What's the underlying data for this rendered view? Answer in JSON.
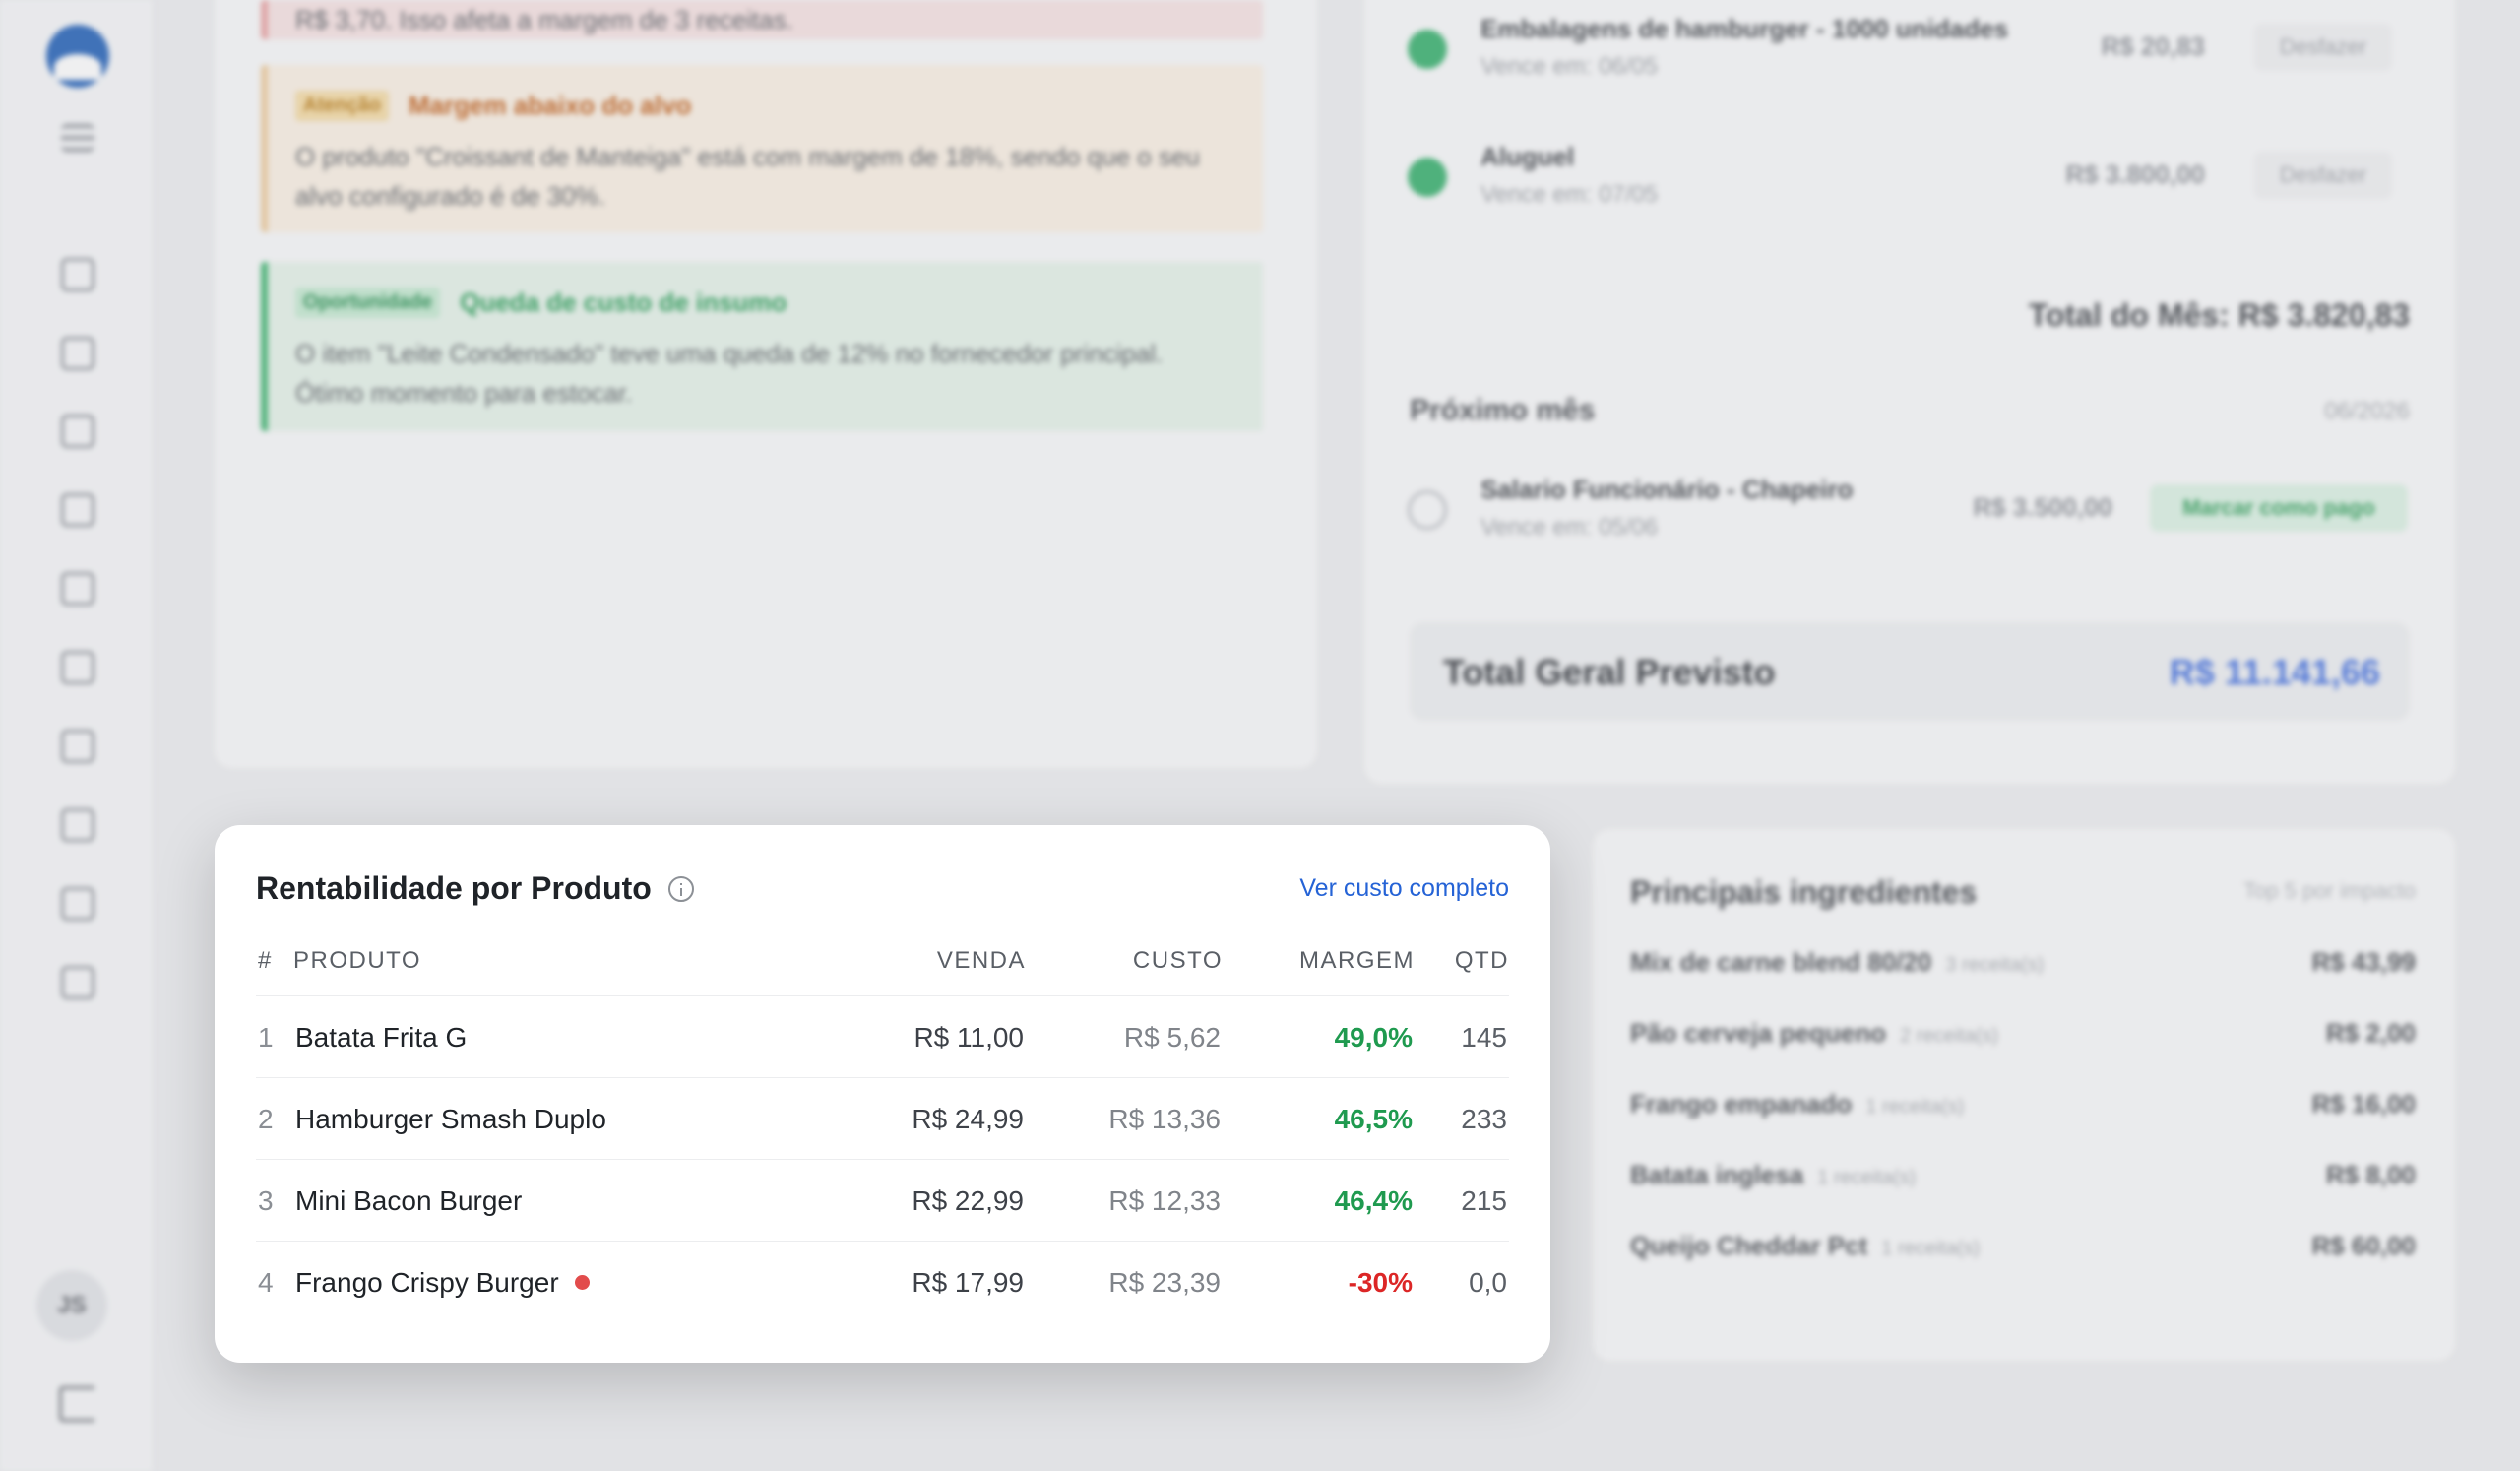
{
  "sidebar": {
    "user_initials": "JS",
    "nav_icons": [
      "menu-icon",
      "dashboard-icon",
      "calendar-icon",
      "store-icon",
      "chart-icon",
      "document-icon",
      "cash-icon",
      "basket-icon",
      "box-icon",
      "flask-icon",
      "chat-icon"
    ],
    "logout_icon": "logout-icon"
  },
  "alerts": {
    "top_fragment": "R$ 3,70. Isso afeta a margem de 3 receitas.",
    "warning": {
      "tag": "Atenção",
      "title": "Margem abaixo do alvo",
      "body": "O produto \"Croissant de Manteiga\" está com margem de 18%, sendo que o seu alvo configurado é de 30%."
    },
    "opportunity": {
      "tag": "Oportunidade",
      "title": "Queda de custo de insumo",
      "body": "O item \"Leite Condensado\" teve uma queda de 12% no fornecedor principal. Ótimo momento para estocar."
    }
  },
  "bills": {
    "current_month": [
      {
        "title": "Embalagens de hamburger - 1000 unidades",
        "due": "Vence em: 06/05",
        "value": "R$ 20,83",
        "action": "Desfazer"
      },
      {
        "title": "Aluguel",
        "due": "Vence em: 07/05",
        "value": "R$ 3.800,00",
        "action": "Desfazer"
      }
    ],
    "month_total": "Total do Mês: R$ 3.820,83",
    "next_month_label": "Próximo mês",
    "next_month_date": "06/2026",
    "next_month": [
      {
        "title": "Salario Funcionário - Chapeiro",
        "due": "Vence em: 05/06",
        "value": "R$ 3.500,00",
        "action": "Marcar como pago"
      }
    ],
    "grand_total_label": "Total Geral Previsto",
    "grand_total_value": "R$ 11.141,66"
  },
  "ingredients": {
    "title": "Principais ingredientes",
    "subtitle": "Top 5 por impacto",
    "items": [
      {
        "name": "Mix de carne blend 80/20",
        "recipes": "3 receita(s)",
        "value": "R$ 43,99"
      },
      {
        "name": "Pão cerveja pequeno",
        "recipes": "2 receita(s)",
        "value": "R$ 2,00"
      },
      {
        "name": "Frango empanado",
        "recipes": "1 receita(s)",
        "value": "R$ 16,00"
      },
      {
        "name": "Batata inglesa",
        "recipes": "1 receita(s)",
        "value": "R$ 8,00"
      },
      {
        "name": "Queijo Cheddar Pct",
        "recipes": "1 receita(s)",
        "value": "R$ 60,00"
      }
    ]
  },
  "profitability": {
    "title": "Rentabilidade por Produto",
    "link": "Ver custo completo",
    "columns": {
      "idx": "#",
      "product": "PRODUTO",
      "sale": "VENDA",
      "cost": "CUSTO",
      "margin": "MARGEM",
      "qty": "QTD"
    },
    "rows": [
      {
        "idx": "1",
        "product": "Batata Frita G",
        "sale": "R$ 11,00",
        "cost": "R$ 5,62",
        "margin": "49,0%",
        "qty": "145"
      },
      {
        "idx": "2",
        "product": "Hamburger Smash Duplo",
        "sale": "R$ 24,99",
        "cost": "R$ 13,36",
        "margin": "46,5%",
        "qty": "233"
      },
      {
        "idx": "3",
        "product": "Mini Bacon Burger",
        "sale": "R$ 22,99",
        "cost": "R$ 12,33",
        "margin": "46,4%",
        "qty": "215"
      },
      {
        "idx": "4",
        "product": "Frango Crispy Burger",
        "sale": "R$ 17,99",
        "cost": "R$ 23,39",
        "margin": "-30%",
        "qty": "0,0"
      }
    ],
    "colors": {
      "positive": "#1f9a4f",
      "negative": "#dc2626",
      "link": "#2563d6"
    }
  }
}
